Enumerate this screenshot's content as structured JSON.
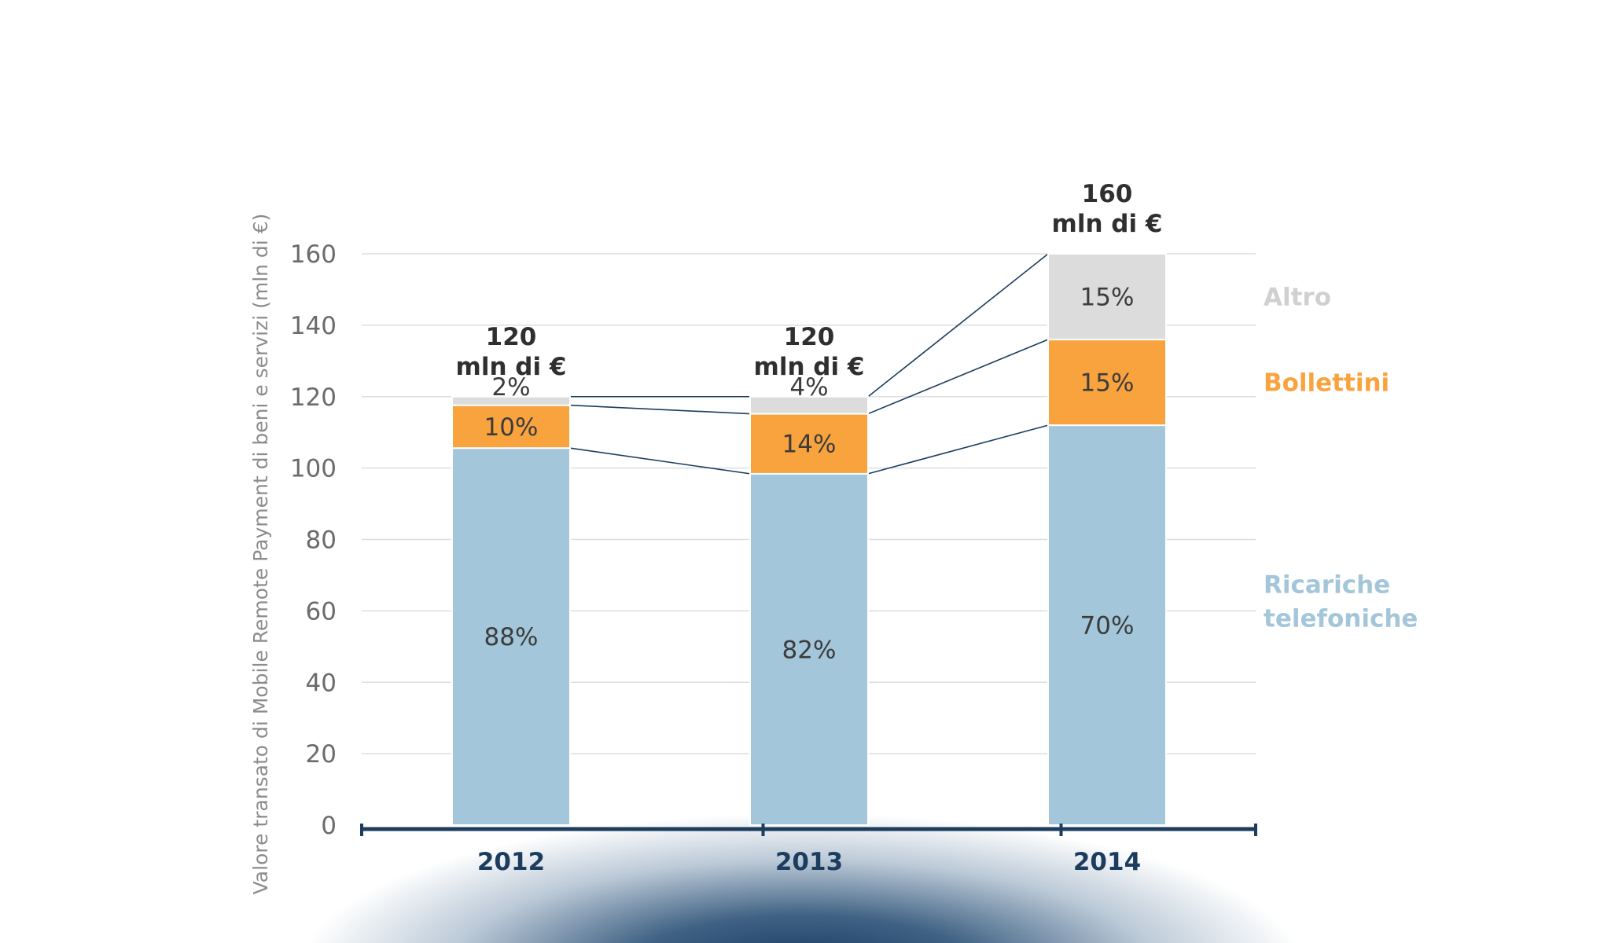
{
  "chart_data": {
    "type": "bar",
    "stacked": true,
    "ylabel": "Valore transato di Mobile Remote Payment di beni e servizi (mln di €)",
    "ylim": [
      0,
      160
    ],
    "yticks": [
      0,
      20,
      40,
      60,
      80,
      100,
      120,
      140,
      160
    ],
    "categories": [
      "2012",
      "2013",
      "2014"
    ],
    "series": [
      {
        "name": "Ricariche telefoniche",
        "legend_lines": [
          "Ricariche",
          "telefoniche"
        ],
        "color": "#a3c6da",
        "values": [
          105.6,
          98.4,
          112
        ],
        "labels": [
          "88%",
          "82%",
          "70%"
        ]
      },
      {
        "name": "Bollettini",
        "legend_lines": [
          "Bollettini"
        ],
        "color": "#f9a33e",
        "values": [
          12,
          16.8,
          24
        ],
        "labels": [
          "10%",
          "14%",
          "15%"
        ]
      },
      {
        "name": "Altro",
        "legend_lines": [
          "Altro"
        ],
        "color": "#dcdcdc",
        "values": [
          2.4,
          4.8,
          24
        ],
        "labels": [
          "2%",
          "4%",
          "15%"
        ]
      }
    ],
    "totals": [
      {
        "value": "120",
        "unit": "mln di €"
      },
      {
        "value": "120",
        "unit": "mln di €"
      },
      {
        "value": "160",
        "unit": "mln di €"
      }
    ],
    "legend_colors": [
      "#a3c6da",
      "#f9a33e",
      "#d0d0d0"
    ],
    "axis_color": "#1c3d5e",
    "grid": true
  }
}
